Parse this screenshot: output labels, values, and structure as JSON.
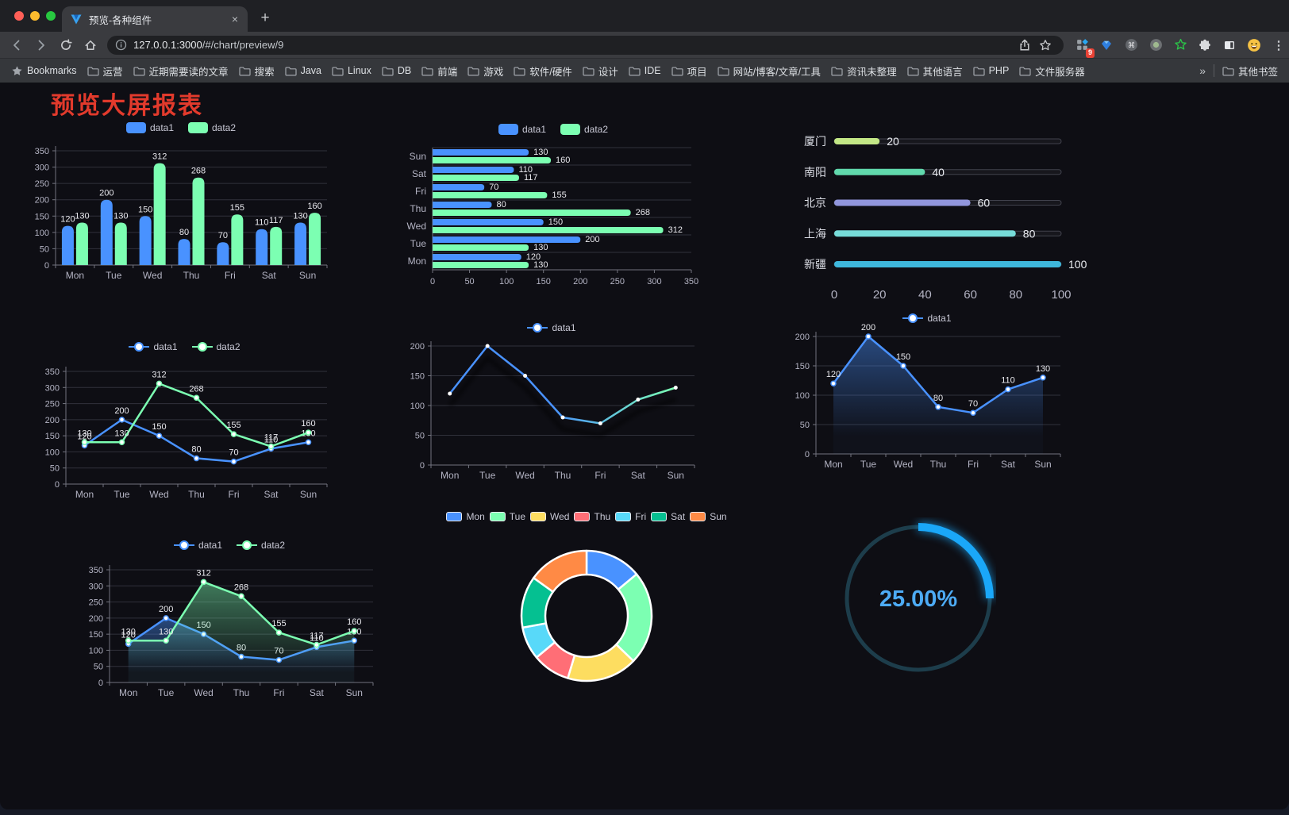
{
  "browser": {
    "tab": {
      "title": "预览-各种组件",
      "close_glyph": "×"
    },
    "new_tab_glyph": "+",
    "menu_glyph": "⋮",
    "address": {
      "url_host": "127.0.0.1:3000",
      "url_path": "/#/chart/preview/9"
    },
    "extension_badge": "9",
    "bookmarks_label": "Bookmarks",
    "bookmark_folders": [
      "运营",
      "近期需要读的文章",
      "搜索",
      "Java",
      "Linux",
      "DB",
      "前端",
      "游戏",
      "软件/硬件",
      "设计",
      "IDE",
      "项目",
      "网站/博客/文章/工具",
      "资讯未整理",
      "其他语言",
      "PHP",
      "文件服务器"
    ],
    "bookmarks_overflow": "»",
    "other_bookmarks": "其他书签"
  },
  "page": {
    "title": "预览大屏报表",
    "title_color": "#e23a2c"
  },
  "colors": {
    "data1": "#4992ff",
    "data2": "#7cffb2",
    "grid": "#30313b",
    "axis_line": "#72737e",
    "axis_text": "#b4b4c4",
    "label": "#e9e9ee"
  },
  "chart_data": [
    {
      "id": "bar-grouped",
      "type": "bar",
      "title": "",
      "categories": [
        "Mon",
        "Tue",
        "Wed",
        "Thu",
        "Fri",
        "Sat",
        "Sun"
      ],
      "series": [
        {
          "name": "data1",
          "color": "#4992ff",
          "values": [
            120,
            200,
            150,
            80,
            70,
            110,
            130
          ]
        },
        {
          "name": "data2",
          "color": "#7cffb2",
          "values": [
            130,
            130,
            312,
            268,
            155,
            117,
            160
          ]
        }
      ],
      "ylim": [
        0,
        350
      ],
      "ytick_step": 50,
      "labels": true,
      "legend_position": "top",
      "grid": true
    },
    {
      "id": "bar-horizontal",
      "type": "bar-horizontal",
      "title": "",
      "categories": [
        "Mon",
        "Tue",
        "Wed",
        "Thu",
        "Fri",
        "Sat",
        "Sun"
      ],
      "series": [
        {
          "name": "data1",
          "color": "#4992ff",
          "values": [
            120,
            200,
            150,
            80,
            70,
            110,
            130
          ]
        },
        {
          "name": "data2",
          "color": "#7cffb2",
          "values": [
            130,
            130,
            312,
            268,
            155,
            117,
            160
          ]
        }
      ],
      "xlim": [
        0,
        350
      ],
      "xtick_step": 50,
      "labels": true,
      "legend_position": "top",
      "grid": true
    },
    {
      "id": "capsule-bars",
      "type": "bar-capsule",
      "title": "",
      "categories": [
        "厦门",
        "南阳",
        "北京",
        "上海",
        "新疆"
      ],
      "values": [
        20,
        40,
        60,
        80,
        100
      ],
      "colors": [
        "#c3e786",
        "#61d9ad",
        "#9196dd",
        "#77dcd9",
        "#3eb7dc"
      ],
      "xlim": [
        0,
        100
      ],
      "xticks": [
        0,
        20,
        40,
        60,
        80,
        100
      ]
    },
    {
      "id": "line-basic",
      "type": "line",
      "title": "",
      "categories": [
        "Mon",
        "Tue",
        "Wed",
        "Thu",
        "Fri",
        "Sat",
        "Sun"
      ],
      "series": [
        {
          "name": "data1",
          "color": "#4992ff",
          "values": [
            120,
            200,
            150,
            80,
            70,
            110,
            130
          ]
        },
        {
          "name": "data2",
          "color": "#7cffb2",
          "values": [
            130,
            130,
            312,
            268,
            155,
            117,
            160
          ]
        }
      ],
      "ylim": [
        0,
        350
      ],
      "ytick_step": 50,
      "labels": true,
      "legend_position": "top",
      "grid": true
    },
    {
      "id": "line-gradient",
      "type": "line",
      "title": "",
      "categories": [
        "Mon",
        "Tue",
        "Wed",
        "Thu",
        "Fri",
        "Sat",
        "Sun"
      ],
      "series": [
        {
          "name": "data1",
          "color": "#4992ff",
          "color_start": "#4992ff",
          "color_end": "#7cffb2",
          "values": [
            120,
            200,
            150,
            80,
            70,
            110,
            130
          ],
          "shadow": true
        }
      ],
      "ylim": [
        0,
        200
      ],
      "ytick_step": 50,
      "labels": false,
      "legend_position": "top",
      "grid": true
    },
    {
      "id": "line-area",
      "type": "area",
      "area": true,
      "title": "",
      "categories": [
        "Mon",
        "Tue",
        "Wed",
        "Thu",
        "Fri",
        "Sat",
        "Sun"
      ],
      "series": [
        {
          "name": "data1",
          "color": "#4992ff",
          "values": [
            120,
            200,
            150,
            80,
            70,
            110,
            130
          ]
        }
      ],
      "ylim": [
        0,
        200
      ],
      "ytick_step": 50,
      "labels": true,
      "legend_position": "top",
      "grid": true
    },
    {
      "id": "line-area-two",
      "type": "area",
      "area": true,
      "title": "",
      "categories": [
        "Mon",
        "Tue",
        "Wed",
        "Thu",
        "Fri",
        "Sat",
        "Sun"
      ],
      "series": [
        {
          "name": "data1",
          "color": "#4992ff",
          "values": [
            120,
            200,
            150,
            80,
            70,
            110,
            130
          ]
        },
        {
          "name": "data2",
          "color": "#7cffb2",
          "values": [
            130,
            130,
            312,
            268,
            155,
            117,
            160
          ]
        }
      ],
      "ylim": [
        0,
        350
      ],
      "ytick_step": 50,
      "labels": true,
      "legend_position": "top",
      "grid": true
    },
    {
      "id": "donut",
      "type": "pie",
      "title": "",
      "categories": [
        "Mon",
        "Tue",
        "Wed",
        "Thu",
        "Fri",
        "Sat",
        "Sun"
      ],
      "values": [
        120,
        200,
        150,
        80,
        70,
        110,
        130
      ],
      "colors": [
        "#4992ff",
        "#7cffb2",
        "#fddd60",
        "#ff6e76",
        "#58d9f9",
        "#05c091",
        "#ff8a45"
      ],
      "inner_radius_ratio": 0.63,
      "legend_position": "top"
    },
    {
      "id": "gauge",
      "type": "gauge",
      "title": "",
      "value": 25,
      "display": "25.00%",
      "color": "#1aa7f8",
      "track_color": "#1d3d4b",
      "text_color": "#4dabf5"
    }
  ]
}
